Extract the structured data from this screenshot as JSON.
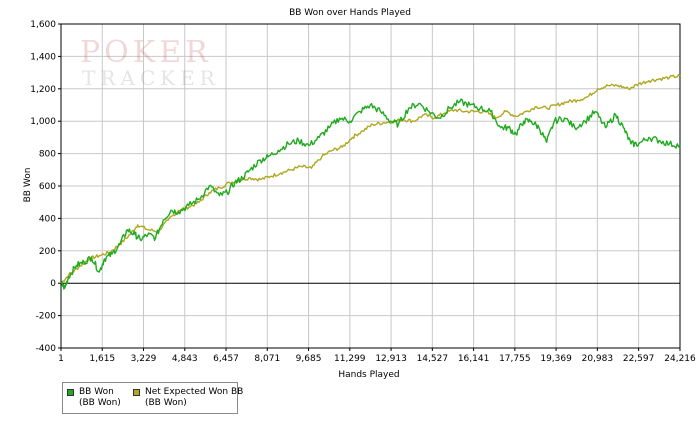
{
  "chart_data": {
    "type": "line",
    "title": "BB Won over Hands Played",
    "xlabel": "Hands Played",
    "ylabel": "BB Won",
    "xlim": [
      1,
      24216
    ],
    "ylim": [
      -400,
      1600
    ],
    "x_ticks": [
      1,
      1615,
      3229,
      4843,
      6457,
      8071,
      9685,
      11299,
      12913,
      14527,
      16141,
      17755,
      19369,
      20983,
      22597,
      24216
    ],
    "x_tick_labels": [
      "1",
      "1,615",
      "3,229",
      "4,843",
      "6,457",
      "8,071",
      "9,685",
      "11,299",
      "12,913",
      "14,527",
      "16,141",
      "17,755",
      "19,369",
      "20,983",
      "22,597",
      "24,216"
    ],
    "y_ticks": [
      -400,
      -200,
      0,
      200,
      400,
      600,
      800,
      1000,
      1200,
      1400,
      1600
    ],
    "y_tick_labels": [
      "-400",
      "-200",
      "0",
      "200",
      "400",
      "600",
      "800",
      "1,000",
      "1,200",
      "1,400",
      "1,600"
    ],
    "grid": true,
    "legend_position": "bottom-left",
    "series": [
      {
        "name": "BB Won",
        "sub": "(BB Won)",
        "color": "#1faa1f",
        "x": [
          1,
          150,
          300,
          600,
          900,
          1200,
          1500,
          1700,
          2000,
          2300,
          2600,
          2900,
          3100,
          3400,
          3700,
          4000,
          4300,
          4600,
          5000,
          5400,
          5800,
          6200,
          6500,
          6800,
          7100,
          7400,
          7800,
          8100,
          8500,
          8900,
          9300,
          9700,
          10100,
          10500,
          10900,
          11300,
          11700,
          12100,
          12500,
          12900,
          13200,
          13600,
          14000,
          14400,
          14800,
          15200,
          15600,
          16000,
          16400,
          16800,
          17200,
          17500,
          17800,
          18100,
          18400,
          18700,
          19000,
          19300,
          19700,
          20100,
          20500,
          20900,
          21300,
          21700,
          22000,
          22300,
          22600,
          23000,
          23400,
          23800,
          24216
        ],
        "values": [
          0,
          -30,
          40,
          110,
          130,
          160,
          70,
          150,
          180,
          240,
          330,
          300,
          270,
          300,
          280,
          390,
          450,
          440,
          480,
          520,
          600,
          540,
          560,
          620,
          650,
          700,
          760,
          780,
          820,
          860,
          880,
          850,
          900,
          960,
          1020,
          1000,
          1060,
          1100,
          1060,
          1000,
          980,
          1080,
          1110,
          1060,
          1020,
          1080,
          1120,
          1100,
          1080,
          1060,
          960,
          960,
          920,
          1000,
          1000,
          960,
          870,
          1000,
          1020,
          960,
          1000,
          1060,
          960,
          1040,
          960,
          860,
          860,
          900,
          880,
          860,
          850
        ]
      },
      {
        "name": "Net Expected Won BB",
        "sub": "(BB Won)",
        "color": "#b0a820",
        "x": [
          1,
          300,
          700,
          1100,
          1500,
          1900,
          2300,
          2700,
          3000,
          3400,
          3800,
          4200,
          4600,
          5000,
          5400,
          5800,
          6200,
          6600,
          7000,
          7400,
          7800,
          8200,
          8600,
          9000,
          9400,
          9800,
          10200,
          10600,
          11000,
          11400,
          11800,
          12200,
          12600,
          13000,
          13400,
          13800,
          14200,
          14600,
          15000,
          15400,
          15800,
          16200,
          16600,
          17000,
          17400,
          17800,
          18200,
          18600,
          19000,
          19400,
          19800,
          20200,
          20600,
          21000,
          21400,
          21800,
          22200,
          22600,
          23000,
          23400,
          23800,
          24216
        ],
        "values": [
          0,
          50,
          100,
          150,
          170,
          190,
          240,
          300,
          360,
          330,
          320,
          390,
          450,
          470,
          500,
          560,
          590,
          620,
          640,
          650,
          640,
          660,
          680,
          700,
          720,
          710,
          780,
          820,
          840,
          900,
          940,
          980,
          990,
          1000,
          1010,
          1000,
          1040,
          1020,
          1050,
          1070,
          1060,
          1060,
          1060,
          1020,
          1060,
          1030,
          1060,
          1090,
          1080,
          1100,
          1120,
          1130,
          1150,
          1200,
          1220,
          1220,
          1200,
          1230,
          1250,
          1260,
          1270,
          1280
        ]
      }
    ]
  },
  "watermark": {
    "line1": "POKER",
    "line2": "TRACKER",
    "mark": "3"
  },
  "colors": {
    "grid": "#c8c8c8",
    "axis": "#000000",
    "zero_line": "#000000"
  }
}
